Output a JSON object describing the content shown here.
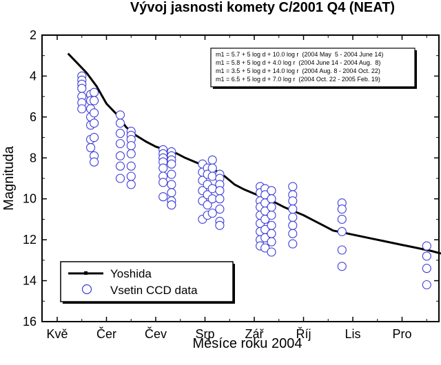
{
  "chart_data": {
    "type": "scatter",
    "title": "Vývoj jasnosti komety C/2001 Q4 (NEAT)",
    "xlabel": "Měsíce roku 2004",
    "ylabel": "Magnituda",
    "x_tick_labels": [
      "Kvě",
      "Čer",
      "Čev",
      "Srp",
      "Zář",
      "Říj",
      "Lis",
      "Pro"
    ],
    "y_ticks": [
      2,
      4,
      6,
      8,
      10,
      12,
      14,
      16
    ],
    "y_inverted": true,
    "ylim": [
      2,
      16
    ],
    "xlim": [
      0,
      8
    ],
    "formulas": [
      "m1 = 5.7 + 5 log d + 10.0 log r  (2004 May  5 - 2004 June 14)",
      "m1 = 5.8 + 5 log d + 4.0 log r  (2004 June 14 - 2004 Aug.  8)",
      "m1 = 3.5 + 5 log d + 14.0 log r  (2004 Aug. 8 - 2004 Oct. 22)",
      "m1 = 6.5 + 5 log d + 7.0 log r  (2004 Oct. 22 - 2005 Feb. 19)"
    ],
    "legend_position": "bottom-left",
    "series": [
      {
        "name": "Yoshida",
        "style": "line",
        "color": "#000000",
        "x": [
          0.22,
          0.4,
          0.6,
          0.8,
          1.0,
          1.2,
          1.4,
          1.6,
          1.8,
          2.0,
          2.2,
          2.4,
          2.6,
          2.8,
          3.0,
          3.2,
          3.4,
          3.6,
          3.8,
          4.0,
          4.2,
          4.4,
          4.6,
          4.8,
          5.0,
          5.2,
          5.4,
          5.6,
          5.8,
          6.0,
          6.2,
          6.4,
          6.6,
          6.8,
          7.0,
          7.2,
          7.4,
          7.6,
          7.8
        ],
        "y": [
          2.9,
          3.35,
          3.85,
          4.5,
          5.35,
          5.85,
          6.5,
          6.9,
          7.2,
          7.45,
          7.6,
          7.75,
          8.0,
          8.2,
          8.4,
          8.6,
          8.9,
          9.3,
          9.55,
          9.75,
          9.95,
          10.15,
          10.4,
          10.6,
          10.8,
          11.05,
          11.3,
          11.55,
          11.65,
          11.75,
          11.85,
          11.95,
          12.05,
          12.15,
          12.25,
          12.35,
          12.45,
          12.55,
          12.68
        ]
      },
      {
        "name": "Vsetin CCD data",
        "style": "markers",
        "color": "#3a3ad8",
        "x": [
          0.5,
          0.5,
          0.5,
          0.5,
          0.5,
          0.5,
          0.5,
          0.68,
          0.68,
          0.68,
          0.68,
          0.68,
          0.68,
          0.68,
          0.75,
          0.75,
          0.75,
          0.75,
          0.75,
          0.75,
          0.75,
          1.28,
          1.28,
          1.28,
          1.28,
          1.28,
          1.28,
          1.28,
          1.5,
          1.5,
          1.5,
          1.5,
          1.5,
          1.5,
          1.5,
          1.5,
          2.15,
          2.15,
          2.15,
          2.15,
          2.15,
          2.15,
          2.15,
          2.15,
          2.32,
          2.32,
          2.32,
          2.32,
          2.32,
          2.32,
          2.32,
          2.32,
          2.32,
          2.32,
          2.95,
          2.95,
          2.95,
          2.95,
          2.95,
          2.95,
          3.05,
          3.05,
          3.05,
          3.05,
          3.05,
          3.05,
          3.15,
          3.15,
          3.15,
          3.15,
          3.15,
          3.15,
          3.3,
          3.3,
          3.3,
          3.3,
          3.3,
          3.3,
          3.3,
          3.3,
          4.12,
          4.12,
          4.12,
          4.12,
          4.12,
          4.12,
          4.12,
          4.12,
          4.12,
          4.22,
          4.22,
          4.22,
          4.22,
          4.22,
          4.22,
          4.22,
          4.22,
          4.35,
          4.35,
          4.35,
          4.35,
          4.35,
          4.35,
          4.35,
          4.35,
          4.78,
          4.78,
          4.78,
          4.78,
          4.78,
          4.78,
          4.78,
          4.78,
          5.78,
          5.78,
          5.78,
          5.78,
          5.78,
          5.78,
          7.5,
          7.5,
          7.5,
          7.5,
          7.95,
          7.95,
          7.95
        ],
        "y": [
          4.0,
          4.2,
          4.4,
          4.6,
          5.0,
          5.3,
          5.6,
          4.9,
          5.2,
          5.6,
          6.0,
          6.4,
          7.1,
          7.5,
          4.8,
          5.2,
          5.8,
          6.3,
          7.0,
          7.9,
          8.2,
          5.9,
          6.3,
          6.8,
          7.3,
          7.9,
          8.4,
          9.0,
          6.7,
          6.9,
          7.1,
          7.4,
          7.8,
          8.4,
          8.9,
          9.3,
          7.6,
          7.8,
          8.0,
          8.2,
          8.5,
          8.9,
          9.2,
          9.9,
          7.7,
          7.9,
          8.1,
          8.3,
          8.8,
          9.3,
          9.7,
          10.1,
          10.3,
          10.3,
          8.3,
          8.7,
          9.1,
          9.6,
          10.1,
          11.0,
          8.5,
          8.8,
          9.3,
          9.8,
          10.3,
          10.8,
          8.1,
          8.5,
          8.9,
          9.5,
          10.0,
          10.7,
          8.8,
          9.0,
          9.3,
          9.6,
          10.0,
          10.5,
          11.1,
          11.3,
          9.4,
          9.7,
          10.1,
          10.4,
          10.8,
          11.2,
          11.6,
          12.0,
          12.3,
          9.5,
          9.8,
          10.2,
          10.6,
          11.0,
          11.5,
          11.9,
          12.4,
          9.6,
          10.0,
          10.4,
          10.8,
          11.3,
          11.7,
          12.1,
          12.6,
          9.4,
          9.8,
          10.1,
          10.5,
          10.9,
          11.3,
          11.7,
          12.2,
          10.2,
          10.5,
          11.0,
          11.6,
          12.5,
          13.3,
          12.3,
          12.8,
          13.4,
          14.2,
          13.1,
          13.3,
          14.4
        ]
      }
    ]
  }
}
